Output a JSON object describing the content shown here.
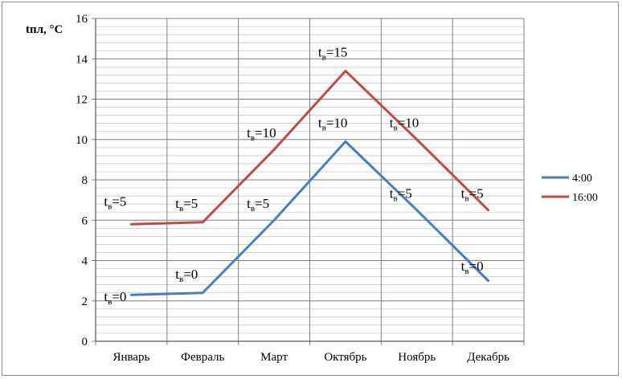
{
  "chart_data": {
    "type": "line",
    "ylabel": "tпл, °С",
    "ylim": [
      0,
      16
    ],
    "yticks": [
      "0",
      "2",
      "4",
      "6",
      "8",
      "10",
      "12",
      "14",
      "16"
    ],
    "categories": [
      "Январь",
      "Февраль",
      "Март",
      "Октябрь",
      "Ноябрь",
      "Декабрь"
    ],
    "grid": true,
    "legend_position": "right",
    "series": [
      {
        "name": "4:00",
        "color": "#4a7ebb",
        "values": [
          2.3,
          2.4,
          6.0,
          9.9,
          6.5,
          3.0
        ]
      },
      {
        "name": "16:00",
        "color": "#be4b48",
        "values": [
          5.8,
          5.9,
          9.5,
          13.4,
          10.0,
          6.5
        ]
      }
    ],
    "annotations": [
      {
        "base": "t",
        "sub": "в",
        "rest": "=0",
        "cat": 0,
        "y": 2.0
      },
      {
        "base": "t",
        "sub": "в",
        "rest": "=5",
        "cat": 0,
        "y": 6.7
      },
      {
        "base": "t",
        "sub": "в",
        "rest": "=0",
        "cat": 1,
        "y": 3.1
      },
      {
        "base": "t",
        "sub": "в",
        "rest": "=5",
        "cat": 1,
        "y": 6.6
      },
      {
        "base": "t",
        "sub": "в",
        "rest": "=5",
        "cat": 2,
        "y": 6.6
      },
      {
        "base": "t",
        "sub": "в",
        "rest": "=10",
        "cat": 2,
        "y": 10.1
      },
      {
        "base": "t",
        "sub": "в",
        "rest": "=10",
        "cat": 3,
        "y": 10.6
      },
      {
        "base": "t",
        "sub": "в",
        "rest": "=15",
        "cat": 3,
        "y": 14.1
      },
      {
        "base": "t",
        "sub": "в",
        "rest": "=5",
        "cat": 4,
        "y": 7.1
      },
      {
        "base": "t",
        "sub": "в",
        "rest": "=10",
        "cat": 4,
        "y": 10.6
      },
      {
        "base": "t",
        "sub": "в",
        "rest": "=0",
        "cat": 5,
        "y": 3.5
      },
      {
        "base": "t",
        "sub": "в",
        "rest": "=5",
        "cat": 5,
        "y": 7.1
      }
    ]
  }
}
